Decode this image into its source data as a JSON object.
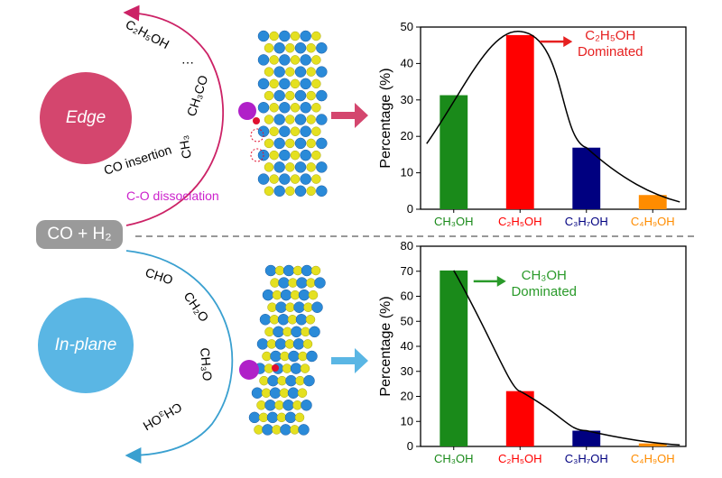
{
  "reactant": "CO + H₂",
  "edge": {
    "label": "Edge",
    "steps": [
      "C-O dissociation",
      "CH₃",
      "CO insertion",
      "CH₃CO",
      "C₂H₅OH"
    ],
    "color": "#d4466e",
    "accent": "#cc2288"
  },
  "inplane": {
    "label": "In-plane",
    "steps": [
      "CHO",
      "CH₂O",
      "CH₃O",
      "CH₃OH"
    ],
    "color": "#5ab6e4"
  },
  "chart_data": [
    {
      "type": "bar",
      "ylabel": "Percentage (%)",
      "ylim": [
        0,
        50
      ],
      "yticks": [
        0,
        10,
        20,
        30,
        40,
        50
      ],
      "categories": [
        "CH₃OH",
        "C₂H₅OH",
        "C₃H₇OH",
        "C₄H₉OH"
      ],
      "values": [
        31.3,
        47.8,
        16.9,
        3.9
      ],
      "colors": [
        "#1a8a1a",
        "#ff0000",
        "#000080",
        "#ff8c00"
      ],
      "annotation": {
        "line1": "C₂H₅OH",
        "line2": "Dominated",
        "color": "#e62020"
      },
      "curve": "peak"
    },
    {
      "type": "bar",
      "ylabel": "Percentage (%)",
      "ylim": [
        0,
        80
      ],
      "yticks": [
        0,
        10,
        20,
        30,
        40,
        50,
        60,
        70,
        80
      ],
      "categories": [
        "CH₃OH",
        "C₂H₅OH",
        "C₃H₇OH",
        "C₄H₉OH"
      ],
      "values": [
        70.3,
        22.1,
        6.3,
        1.2
      ],
      "colors": [
        "#1a8a1a",
        "#ff0000",
        "#000080",
        "#ff8c00"
      ],
      "annotation": {
        "line1": "CH₃OH",
        "line2": "Dominated",
        "color": "#2a9a2a"
      },
      "curve": "decay"
    }
  ]
}
